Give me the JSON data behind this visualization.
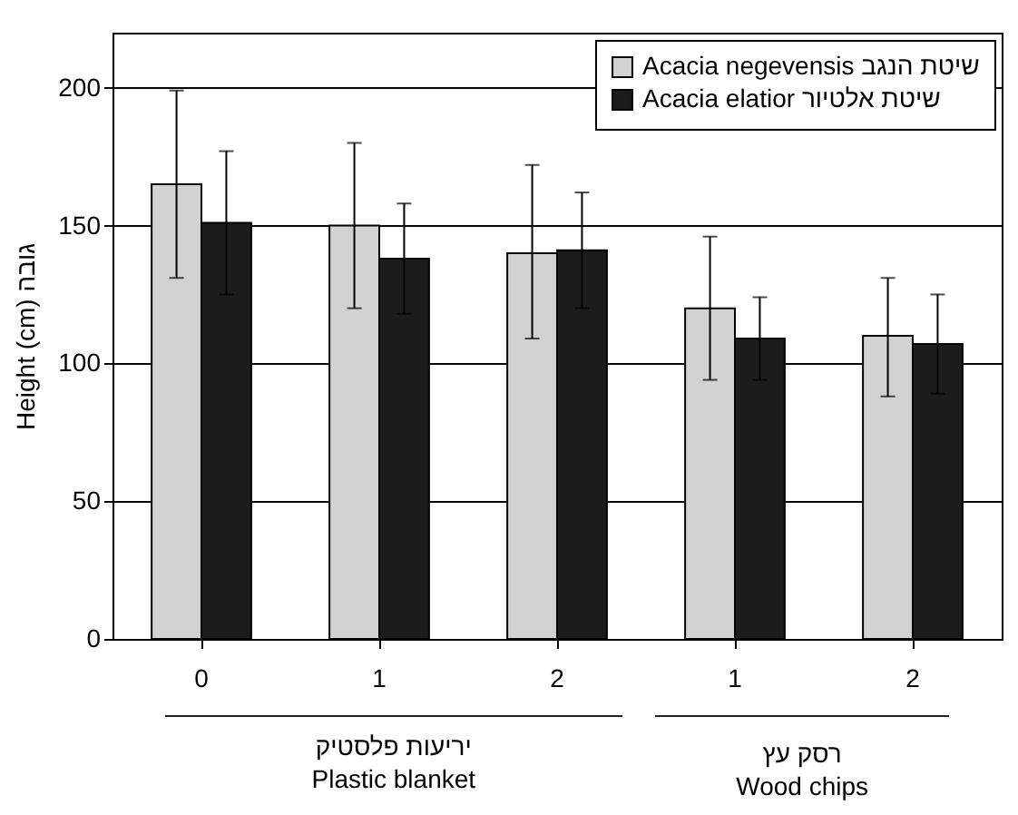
{
  "chart_data": {
    "type": "bar",
    "ylabel": "Height (cm) גובה",
    "categories": [
      "0",
      "1",
      "2",
      "1",
      "2"
    ],
    "series": [
      {
        "name": "Acacia negevensis שיטת הנגב",
        "color": "#d2d2d2",
        "values": [
          165,
          150,
          140,
          120,
          110
        ],
        "errors": [
          [
            131,
            199
          ],
          [
            120,
            180
          ],
          [
            109,
            172
          ],
          [
            94,
            146
          ],
          [
            88,
            131
          ]
        ]
      },
      {
        "name": "Acacia elatior שיטת אלטיור",
        "color": "#1c1c1c",
        "values": [
          151,
          138,
          141,
          109,
          107
        ],
        "errors": [
          26,
          20,
          21,
          15,
          18
        ]
      }
    ],
    "ylim": [
      0,
      220
    ],
    "yticks": [
      0,
      50,
      100,
      150,
      200
    ],
    "grid": "y",
    "legend": "top right",
    "annotations": [
      "יריעות פלסטיק",
      "Plastic blanket",
      "רסק עץ",
      "Wood chips"
    ]
  }
}
